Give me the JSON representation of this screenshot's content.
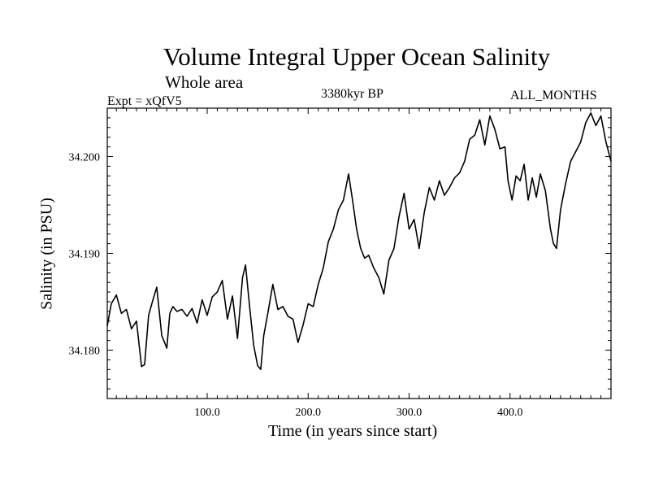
{
  "chart_data": {
    "type": "line",
    "title": "Volume Integral Upper Ocean Salinity",
    "subtitle": "Whole area",
    "annotations": {
      "left": "Expt = xQfV5",
      "center": "3380kyr BP",
      "right": "ALL_MONTHS"
    },
    "xlabel": "Time (in years since start)",
    "ylabel": "Salinity (in PSU)",
    "xlim": [
      1,
      500
    ],
    "ylim": [
      34.175,
      34.205
    ],
    "xticks": [
      100,
      200,
      300,
      400
    ],
    "xtick_labels": [
      "100.0",
      "200.0",
      "300.0",
      "400.0"
    ],
    "yticks": [
      34.18,
      34.19,
      34.2
    ],
    "ytick_labels": [
      "34.180",
      "34.190",
      "34.200"
    ],
    "series": [
      {
        "name": "Volume integral upper ocean salinity",
        "color": "#000000",
        "x": [
          1,
          5,
          10,
          15,
          20,
          25,
          30,
          35,
          38,
          42,
          46,
          50,
          55,
          60,
          63,
          66,
          70,
          75,
          80,
          85,
          90,
          95,
          100,
          105,
          110,
          115,
          120,
          125,
          130,
          135,
          138,
          142,
          146,
          150,
          153,
          156,
          160,
          165,
          170,
          175,
          180,
          185,
          190,
          195,
          200,
          205,
          210,
          215,
          220,
          225,
          230,
          235,
          240,
          244,
          248,
          252,
          256,
          260,
          265,
          270,
          275,
          280,
          285,
          290,
          295,
          300,
          305,
          310,
          315,
          320,
          325,
          330,
          335,
          340,
          345,
          350,
          355,
          360,
          365,
          370,
          375,
          380,
          385,
          390,
          395,
          398,
          402,
          406,
          410,
          414,
          418,
          422,
          426,
          430,
          435,
          440,
          443,
          446,
          450,
          455,
          460,
          465,
          470,
          475,
          480,
          485,
          490,
          495,
          500
        ],
        "y": [
          34.1825,
          34.1848,
          34.1857,
          34.1838,
          34.1842,
          34.1822,
          34.183,
          34.1783,
          34.1785,
          34.1836,
          34.1851,
          34.1865,
          34.1815,
          34.1802,
          34.1838,
          34.1845,
          34.184,
          34.1842,
          34.1835,
          34.1843,
          34.1828,
          34.1852,
          34.1836,
          34.1855,
          34.186,
          34.1872,
          34.1832,
          34.1856,
          34.1812,
          34.1875,
          34.1888,
          34.1845,
          34.1805,
          34.1784,
          34.178,
          34.1815,
          34.1838,
          34.1868,
          34.1842,
          34.1845,
          34.1835,
          34.1832,
          34.1808,
          34.1826,
          34.1848,
          34.1845,
          34.1868,
          34.1885,
          34.1912,
          34.1925,
          34.1945,
          34.1955,
          34.1982,
          34.1955,
          34.1925,
          34.1905,
          34.1895,
          34.1898,
          34.1885,
          34.1875,
          34.1858,
          34.1893,
          34.1905,
          34.1938,
          34.1962,
          34.1925,
          34.1935,
          34.1905,
          34.1942,
          34.1968,
          34.1955,
          34.1975,
          34.196,
          34.1968,
          34.1978,
          34.1983,
          34.1995,
          34.2018,
          34.2022,
          34.2038,
          34.2012,
          34.2042,
          34.2028,
          34.2008,
          34.201,
          34.1975,
          34.1955,
          34.198,
          34.1975,
          34.1992,
          34.1955,
          34.1978,
          34.1958,
          34.1982,
          34.1965,
          34.1925,
          34.191,
          34.1905,
          34.1945,
          34.1972,
          34.1995,
          34.2005,
          34.2015,
          34.2035,
          34.2045,
          34.2032,
          34.2042,
          34.2015,
          34.1995
        ]
      }
    ]
  }
}
